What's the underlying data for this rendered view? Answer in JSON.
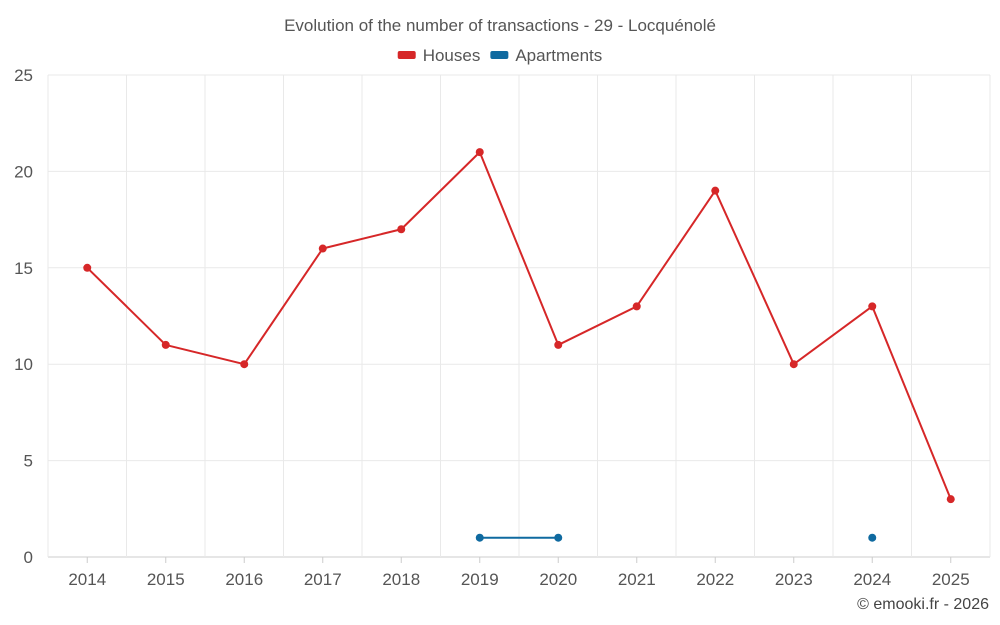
{
  "chart_data": {
    "type": "line",
    "title": "Evolution of the number of transactions - 29 - Locquénolé",
    "categories": [
      "2014",
      "2015",
      "2016",
      "2017",
      "2018",
      "2019",
      "2020",
      "2021",
      "2022",
      "2023",
      "2024",
      "2025"
    ],
    "ylim": [
      0,
      25
    ],
    "yticks": [
      0,
      5,
      10,
      15,
      20,
      25
    ],
    "grid": true,
    "legend_position": "top-center",
    "series": [
      {
        "name": "Houses",
        "color": "#d62728",
        "values": [
          15,
          11,
          10,
          16,
          17,
          21,
          11,
          13,
          19,
          10,
          13,
          3
        ]
      },
      {
        "name": "Apartments",
        "color": "#0f6aa0",
        "values": [
          null,
          null,
          null,
          null,
          null,
          1,
          1,
          null,
          null,
          null,
          1,
          null
        ]
      }
    ],
    "credit": "© emooki.fr - 2026"
  }
}
